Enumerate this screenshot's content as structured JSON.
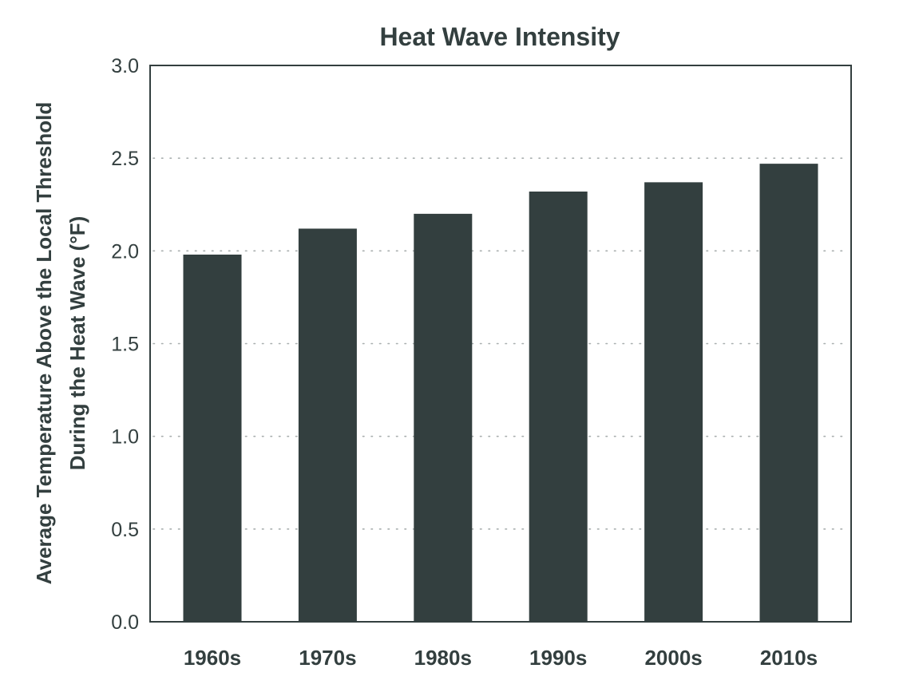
{
  "chart_data": {
    "type": "bar",
    "title": "Heat Wave Intensity",
    "ylabel_lines": [
      "Average Temperature Above the Local Threshold",
      "During the Heat Wave (°F)"
    ],
    "xlabel": "",
    "categories": [
      "1960s",
      "1970s",
      "1980s",
      "1990s",
      "2000s",
      "2010s"
    ],
    "values": [
      1.98,
      2.12,
      2.2,
      2.32,
      2.37,
      2.47
    ],
    "ylim": [
      0,
      3.0
    ],
    "yticks": [
      "0.0",
      "0.5",
      "1.0",
      "1.5",
      "2.0",
      "2.5",
      "3.0"
    ],
    "grid": "horizontal-dotted",
    "bar_color": "#333f3f",
    "text_color": "#333f3f",
    "grid_color": "#a8aeae"
  }
}
